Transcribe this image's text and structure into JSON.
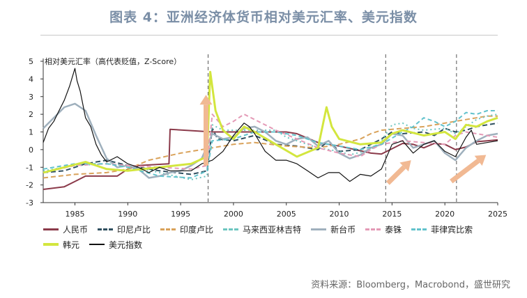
{
  "title": "图表 4：亚洲经济体货币相对美元汇率、美元指数",
  "source": "资料来源：Bloomberg，Macrobond，盛世研究",
  "chart_data": {
    "type": "line",
    "ylabel": "相对美元汇率（高代表贬值，Z-Score）",
    "xlim": [
      1982,
      2025
    ],
    "ylim": [
      -3,
      5
    ],
    "xticks": [
      "1985",
      "1990",
      "1995",
      "2000",
      "2005",
      "2010",
      "2015",
      "2020",
      "2025"
    ],
    "yticks": [
      "5",
      "4",
      "3",
      "2",
      "1",
      "0",
      "-1",
      "-2",
      "-3"
    ],
    "vlines": [
      1997.6,
      2014.4,
      2021.1
    ],
    "arrows": [
      {
        "x1": 1997.4,
        "y1": -0.9,
        "x2": 1997.4,
        "y2": 3.1
      },
      {
        "x1": 2014.6,
        "y1": -1.9,
        "x2": 2016.8,
        "y2": -0.6
      },
      {
        "x1": 2020.6,
        "y1": -1.8,
        "x2": 2023.9,
        "y2": -0.3
      }
    ],
    "series": [
      {
        "name": "人民币",
        "color": "#8b3a4a",
        "dash": "",
        "width": 2,
        "x": [
          1982,
          1984,
          1985,
          1986,
          1987,
          1989,
          1990,
          1991,
          1993.9,
          1994,
          1998,
          2005,
          2006,
          2008,
          2010,
          2013,
          2014,
          2015,
          2016,
          2017,
          2018,
          2019,
          2020,
          2021,
          2022,
          2023,
          2024,
          2025
        ],
        "y": [
          -2.25,
          -2.1,
          -1.8,
          -1.5,
          -1.5,
          -1.5,
          -1.1,
          -0.9,
          -0.8,
          1.15,
          1.0,
          1.0,
          0.9,
          0.4,
          0.2,
          -0.2,
          -0.25,
          0.05,
          0.35,
          0.3,
          0.1,
          0.35,
          0.3,
          0.0,
          0.15,
          0.45,
          0.5,
          0.55
        ]
      },
      {
        "name": "印尼卢比",
        "color": "#2f4f5f",
        "dash": "7,4",
        "width": 2,
        "x": [
          1982,
          1984,
          1986,
          1988,
          1990,
          1993,
          1996,
          1997.5,
          1998,
          1998.5,
          2000,
          2002,
          2004,
          2006,
          2008,
          2009,
          2010,
          2012,
          2013,
          2014,
          2015,
          2016,
          2018,
          2019,
          2020,
          2021,
          2022,
          2023,
          2024,
          2025
        ],
        "y": [
          -1.3,
          -1.2,
          -0.8,
          -0.6,
          -0.9,
          -1.2,
          -1.4,
          -1.2,
          1.2,
          0.6,
          0.5,
          0.8,
          0.3,
          0.2,
          0.0,
          0.5,
          -0.1,
          0.0,
          0.3,
          0.6,
          1.0,
          0.9,
          1.0,
          0.8,
          1.2,
          1.0,
          1.1,
          1.3,
          1.4,
          1.5
        ]
      },
      {
        "name": "印度卢比",
        "color": "#d9a25a",
        "dash": "7,4",
        "width": 2,
        "x": [
          1982,
          1985,
          1988,
          1990,
          1992,
          1995,
          1998,
          2000,
          2002,
          2005,
          2008,
          2010,
          2012,
          2013,
          2014,
          2016,
          2018,
          2020,
          2022,
          2023,
          2024,
          2025
        ],
        "y": [
          -1.6,
          -1.4,
          -1.3,
          -1.1,
          -0.6,
          -0.2,
          0.1,
          0.3,
          0.4,
          0.2,
          0.1,
          0.3,
          0.6,
          0.9,
          1.1,
          1.2,
          1.3,
          1.5,
          1.7,
          1.8,
          1.9,
          1.9
        ]
      },
      {
        "name": "马来西亚林吉特",
        "color": "#6cc6c0",
        "dash": "2,4",
        "width": 2,
        "x": [
          1982,
          1985,
          1988,
          1990,
          1993,
          1996,
          1997.5,
          1998,
          1999,
          2001,
          2004,
          2005,
          2007,
          2008,
          2010,
          2011,
          2013,
          2014,
          2015,
          2016,
          2017,
          2018,
          2020,
          2021,
          2022,
          2023,
          2024,
          2025
        ],
        "y": [
          -1.2,
          -0.9,
          -0.8,
          -0.9,
          -1.3,
          -1.7,
          -1.5,
          1.4,
          1.1,
          1.1,
          1.1,
          0.7,
          0.3,
          0.1,
          -0.1,
          -0.3,
          0.0,
          0.5,
          1.4,
          1.5,
          1.2,
          1.1,
          1.2,
          0.9,
          1.3,
          1.7,
          1.9,
          2.0
        ]
      },
      {
        "name": "新台币",
        "color": "#9fb0bd",
        "dash": "",
        "width": 2.5,
        "x": [
          1982,
          1983,
          1984,
          1985,
          1986,
          1987,
          1988,
          1989,
          1990,
          1991,
          1992,
          1993,
          1994,
          1995,
          1996,
          1997,
          1998,
          1999,
          2000,
          2001,
          2002,
          2003,
          2004,
          2005,
          2006,
          2007,
          2008,
          2009,
          2010,
          2011,
          2012,
          2013,
          2014,
          2015,
          2016,
          2017,
          2018,
          2019,
          2020,
          2021,
          2022,
          2023,
          2024,
          2025
        ],
        "y": [
          1.2,
          1.8,
          2.4,
          2.6,
          2.2,
          0.8,
          -0.5,
          -1.0,
          -0.9,
          -1.1,
          -1.6,
          -1.5,
          -1.3,
          -1.2,
          -0.9,
          -0.5,
          0.9,
          0.6,
          0.7,
          1.2,
          1.3,
          1.0,
          0.5,
          0.3,
          0.6,
          0.7,
          0.2,
          0.5,
          -0.2,
          -0.5,
          -0.3,
          0.1,
          0.3,
          0.9,
          0.8,
          0.1,
          0.3,
          0.5,
          -0.2,
          -0.6,
          0.1,
          0.5,
          0.8,
          0.9
        ]
      },
      {
        "name": "泰铢",
        "color": "#e49ab6",
        "dash": "6,4",
        "width": 2,
        "x": [
          1982,
          1985,
          1988,
          1990,
          1993,
          1996,
          1997.5,
          1998,
          1999,
          2000,
          2001,
          2002,
          2004,
          2006,
          2008,
          2010,
          2012,
          2013,
          2014,
          2016,
          2018,
          2020,
          2021,
          2022,
          2023,
          2024,
          2025
        ],
        "y": [
          -1.3,
          -0.9,
          -0.8,
          -0.9,
          -1.0,
          -1.1,
          -0.9,
          2.0,
          1.3,
          1.6,
          2.0,
          1.7,
          1.1,
          0.6,
          0.1,
          -0.2,
          -0.4,
          0.0,
          0.3,
          0.5,
          0.4,
          0.3,
          0.8,
          1.0,
          0.9,
          0.8,
          0.7
        ]
      },
      {
        "name": "菲律宾比索",
        "color": "#62c2cc",
        "dash": "6,4",
        "width": 2,
        "x": [
          1982,
          1985,
          1988,
          1990,
          1993,
          1996,
          1997.5,
          1998,
          2000,
          2002,
          2004,
          2006,
          2008,
          2010,
          2012,
          2014,
          2016,
          2017,
          2018,
          2019,
          2020,
          2021,
          2022,
          2023,
          2024,
          2025
        ],
        "y": [
          -1.1,
          -0.8,
          -0.8,
          -1.0,
          -1.5,
          -1.6,
          -1.2,
          0.5,
          0.6,
          1.0,
          1.0,
          0.8,
          0.4,
          0.2,
          0.0,
          0.3,
          1.0,
          1.3,
          1.8,
          1.6,
          1.3,
          1.6,
          2.1,
          2.0,
          2.2,
          2.2
        ]
      },
      {
        "name": "韩元",
        "color": "#d3e63e",
        "dash": "",
        "width": 3,
        "x": [
          1982,
          1984,
          1986,
          1988,
          1990,
          1993,
          1996,
          1997.5,
          1997.8,
          1998.3,
          1999,
          2000,
          2001,
          2002,
          2004,
          2006,
          2008,
          2008.8,
          2009.3,
          2010,
          2012,
          2014,
          2015,
          2016,
          2018,
          2020,
          2021,
          2022,
          2023,
          2024,
          2025
        ],
        "y": [
          -1.3,
          -1.0,
          -0.7,
          -1.1,
          -1.2,
          -1.0,
          -0.8,
          -0.4,
          4.4,
          2.2,
          1.1,
          0.6,
          1.3,
          1.0,
          0.3,
          -0.4,
          0.1,
          2.4,
          1.3,
          0.6,
          0.3,
          0.4,
          0.9,
          1.1,
          0.8,
          1.0,
          0.6,
          1.4,
          1.3,
          1.6,
          1.8
        ]
      },
      {
        "name": "美元指数",
        "color": "#111111",
        "dash": "",
        "width": 1.2,
        "x": [
          1982,
          1982.5,
          1983,
          1983.5,
          1984,
          1984.5,
          1985,
          1985.2,
          1985.5,
          1986,
          1986.5,
          1987,
          1987.5,
          1988,
          1989,
          1990,
          1991,
          1992,
          1993,
          1994,
          1995,
          1996,
          1997,
          1998,
          1999,
          2000,
          2001,
          2001.5,
          2002,
          2003,
          2004,
          2005,
          2006,
          2007,
          2008,
          2009,
          2010,
          2011,
          2012,
          2013,
          2014,
          2015,
          2016,
          2017,
          2018,
          2019,
          2020,
          2021,
          2022,
          2022.5,
          2023,
          2024,
          2025
        ],
        "y": [
          0.4,
          1.2,
          1.6,
          2.2,
          2.8,
          3.6,
          4.6,
          3.9,
          3.3,
          1.8,
          1.3,
          0.3,
          -0.3,
          -0.7,
          -0.4,
          -0.8,
          -1.0,
          -1.3,
          -1.0,
          -1.2,
          -1.2,
          -1.2,
          -0.8,
          -0.6,
          -0.1,
          0.8,
          1.5,
          1.3,
          0.9,
          -0.1,
          -0.6,
          -0.6,
          -0.8,
          -1.2,
          -1.6,
          -1.3,
          -1.3,
          -1.8,
          -1.4,
          -1.5,
          -1.1,
          0.3,
          0.5,
          -0.2,
          0.3,
          0.5,
          -0.1,
          -0.4,
          0.7,
          1.1,
          0.3,
          0.4,
          0.5
        ]
      }
    ]
  }
}
